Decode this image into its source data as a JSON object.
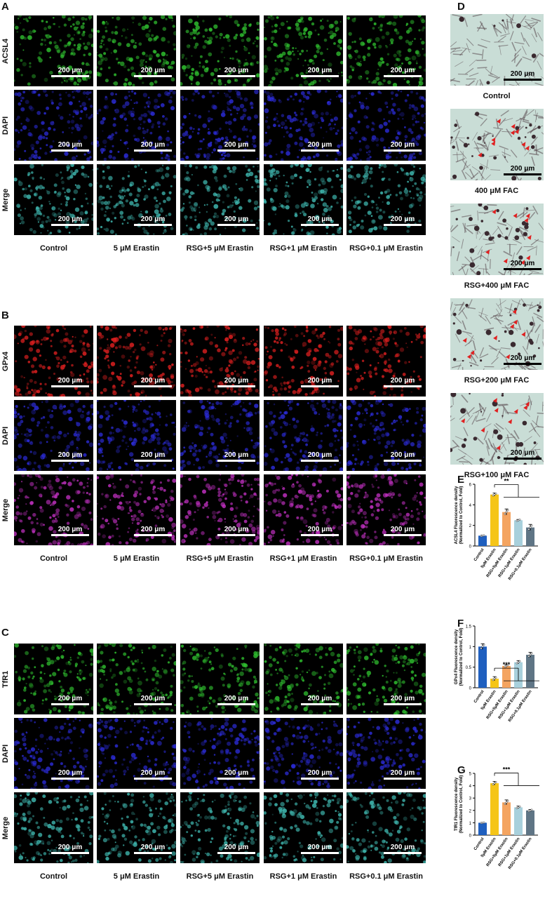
{
  "panels": {
    "A": {
      "letter": "A",
      "rows": [
        "ACSL4",
        "DAPI",
        "Merge"
      ],
      "colors": [
        "green",
        "blue",
        "cyan"
      ]
    },
    "B": {
      "letter": "B",
      "rows": [
        "GPx4",
        "DAPI",
        "Merge"
      ],
      "colors": [
        "red",
        "blue",
        "magenta"
      ]
    },
    "C": {
      "letter": "C",
      "rows": [
        "TfR1",
        "DAPI",
        "Merge"
      ],
      "colors": [
        "green",
        "blue",
        "cyan"
      ]
    },
    "D": {
      "letter": "D",
      "labels": [
        "Control",
        "400 μM FAC",
        "RSG+400 μM FAC",
        "RSG+200 μM FAC",
        "RSG+100 μM FAC"
      ]
    },
    "E": {
      "letter": "E"
    },
    "F": {
      "letter": "F"
    },
    "G": {
      "letter": "G"
    }
  },
  "columns": [
    "Control",
    "5 μM Erastin",
    "RSG+5 μM Erastin",
    "RSG+1 μM Erastin",
    "RSG+0.1 μM Erastin"
  ],
  "scalebar": "200 μm",
  "colors": {
    "green": "#2fbf2f",
    "blue": "#2b2bd6",
    "cyan": "#3fb8b0",
    "red": "#e02020",
    "magenta": "#c030c0",
    "bar_control": "#1f5fbf",
    "bar_erastin": "#f5c518",
    "bar_rsg5": "#f4a460",
    "bar_rsg1": "#a8d0dc",
    "bar_rsg01": "#5f7585"
  },
  "chart_data": [
    {
      "panel": "E",
      "type": "bar",
      "categories": [
        "Control",
        "5μM Erastin",
        "RSG+5μM Erastin",
        "RSG+1μM Erastin",
        "RSG+0.1μM Erastin"
      ],
      "values": [
        1.0,
        5.0,
        3.3,
        2.5,
        1.8
      ],
      "errors": [
        0.05,
        0.15,
        0.3,
        0.08,
        0.3
      ],
      "ylabel": "ACSL4 Fluorescence density",
      "ylabel2": "(Normalized to Control, Fold)",
      "ylim": [
        0,
        6
      ],
      "yticks": [
        0,
        2,
        4,
        6
      ],
      "sig": "**"
    },
    {
      "panel": "F",
      "type": "bar",
      "categories": [
        "Control",
        "5μM Erastin",
        "RSG+5μM Erastin",
        "RSG+1μM Erastin",
        "RSG+0.1μM Erastin"
      ],
      "values": [
        1.0,
        0.22,
        0.53,
        0.62,
        0.8
      ],
      "errors": [
        0.07,
        0.05,
        0.03,
        0.04,
        0.06
      ],
      "ylabel": "GPx4 Fluorescence density",
      "ylabel2": "(Normalized to Control, Fold)",
      "ylim": [
        0,
        1.5
      ],
      "yticks": [
        0.0,
        0.5,
        1.0,
        1.5
      ],
      "sig": "***"
    },
    {
      "panel": "G",
      "type": "bar",
      "categories": [
        "Control",
        "5μM Erastin",
        "RSG+5μM Erastin",
        "RSG+1μM Erastin",
        "RSG+0.1μM Erastin"
      ],
      "values": [
        1.0,
        4.2,
        2.65,
        2.25,
        2.0
      ],
      "errors": [
        0.03,
        0.15,
        0.2,
        0.1,
        0.08
      ],
      "ylabel": "TfR1 Fluorescence density",
      "ylabel2": "(Normalized to Control, Fold)",
      "ylim": [
        0,
        5
      ],
      "yticks": [
        0,
        1,
        2,
        3,
        4,
        5
      ],
      "sig": "***"
    }
  ]
}
